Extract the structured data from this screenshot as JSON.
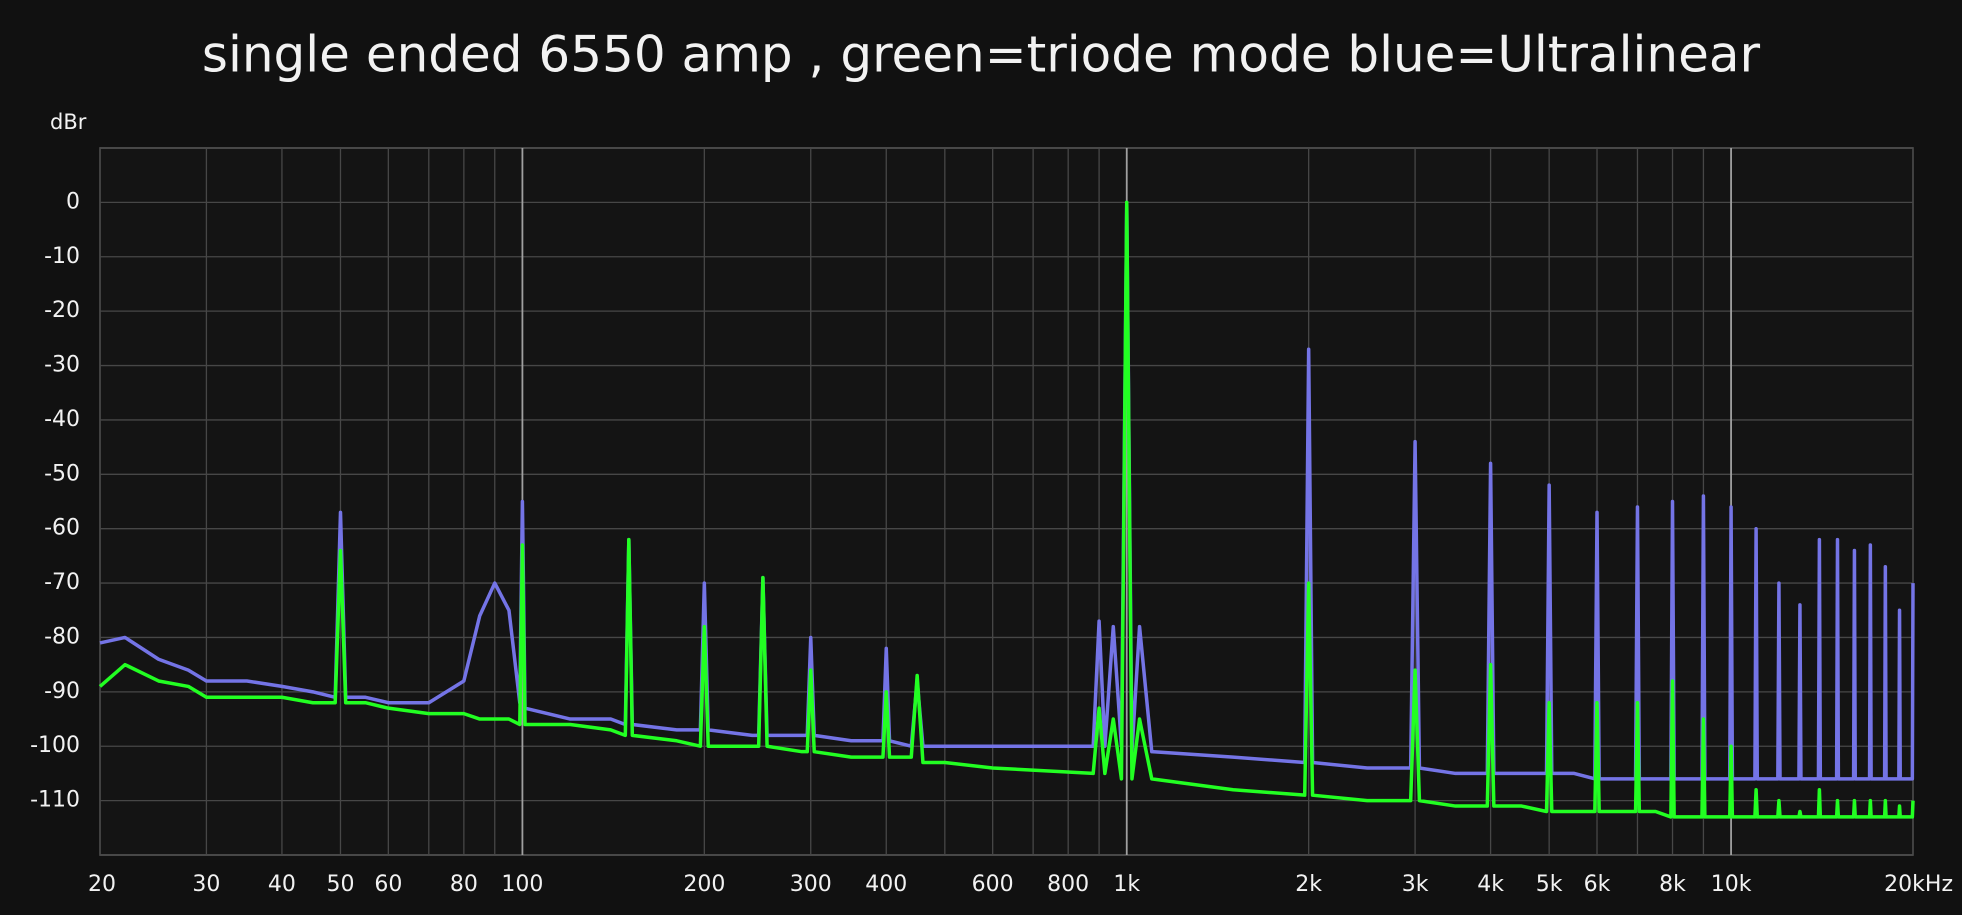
{
  "chart_data": {
    "type": "line",
    "title": "single ended 6550 amp , green=triode mode blue=Ultralinear",
    "y_label": "dBr",
    "x_scale": "log",
    "grid": true,
    "xlim": [
      20,
      20000
    ],
    "ylim": [
      -120,
      10
    ],
    "yticks": [
      0,
      -10,
      -20,
      -30,
      -40,
      -50,
      -60,
      -70,
      -80,
      -90,
      -100,
      -110
    ],
    "xticks": [
      20,
      30,
      40,
      50,
      60,
      80,
      100,
      200,
      300,
      400,
      600,
      800,
      {
        "value": 1000,
        "label": "1k"
      },
      {
        "value": 2000,
        "label": "2k"
      },
      {
        "value": 3000,
        "label": "3k"
      },
      {
        "value": 4000,
        "label": "4k"
      },
      {
        "value": 5000,
        "label": "5k"
      },
      {
        "value": 6000,
        "label": "6k"
      },
      {
        "value": 8000,
        "label": "8k"
      },
      {
        "value": 10000,
        "label": "10k"
      },
      {
        "value": 20000,
        "label": "20kHz"
      }
    ],
    "x_minor_ticks": [
      70,
      90,
      500,
      700,
      900,
      7000,
      9000
    ],
    "x": [
      20,
      22,
      25,
      28,
      30,
      35,
      40,
      45,
      49,
      50,
      51,
      55,
      60,
      70,
      80,
      85,
      90,
      95,
      99,
      100,
      101,
      110,
      120,
      140,
      148,
      150,
      152,
      180,
      197,
      200,
      203,
      240,
      246,
      250,
      254,
      290,
      296,
      300,
      304,
      350,
      395,
      400,
      405,
      440,
      450,
      460,
      500,
      600,
      880,
      900,
      920,
      950,
      980,
      1000,
      1020,
      1050,
      1100,
      1500,
      1970,
      2000,
      2030,
      2500,
      2950,
      3000,
      3050,
      3500,
      3950,
      4000,
      4050,
      4500,
      4950,
      5000,
      5050,
      5500,
      5950,
      6000,
      6050,
      6500,
      6950,
      7000,
      7050,
      7500,
      7950,
      8000,
      8050,
      8500,
      8950,
      9000,
      9050,
      9500,
      9950,
      10000,
      10050,
      10950,
      11000,
      11050,
      11950,
      12000,
      12050,
      12950,
      13000,
      13050,
      13950,
      14000,
      14050,
      14950,
      15000,
      15050,
      15950,
      16000,
      16050,
      16950,
      17000,
      17050,
      17950,
      18000,
      18050,
      18950,
      19000,
      19050,
      19950,
      20000
    ],
    "series": [
      {
        "name": "blue=Ultralinear",
        "color": "#7474e6",
        "values": [
          -81,
          -80,
          -84,
          -86,
          -88,
          -88,
          -89,
          -90,
          -91,
          -57,
          -91,
          -91,
          -92,
          -92,
          -88,
          -76,
          -70,
          -75,
          -92,
          -55,
          -93,
          -94,
          -95,
          -95,
          -96,
          -62,
          -96,
          -97,
          -97,
          -70,
          -97,
          -98,
          -98,
          -69,
          -98,
          -98,
          -98,
          -80,
          -98,
          -99,
          -99,
          -82,
          -99,
          -100,
          -88,
          -100,
          -100,
          -100,
          -100,
          -77,
          -100,
          -78,
          -100,
          0,
          -101,
          -78,
          -101,
          -102,
          -103,
          -27,
          -103,
          -104,
          -104,
          -44,
          -104,
          -105,
          -105,
          -48,
          -105,
          -105,
          -105,
          -52,
          -105,
          -105,
          -106,
          -57,
          -106,
          -106,
          -106,
          -56,
          -106,
          -106,
          -106,
          -55,
          -106,
          -106,
          -106,
          -54,
          -106,
          -106,
          -106,
          -56,
          -106,
          -106,
          -60,
          -106,
          -106,
          -70,
          -106,
          -106,
          -74,
          -106,
          -106,
          -62,
          -106,
          -106,
          -62,
          -106,
          -106,
          -64,
          -106,
          -106,
          -63,
          -106,
          -106,
          -67,
          -106,
          -106,
          -75,
          -106,
          -106,
          -70
        ]
      },
      {
        "name": "green=triode mode",
        "color": "#22ff22",
        "values": [
          -89,
          -85,
          -88,
          -89,
          -91,
          -91,
          -91,
          -92,
          -92,
          -64,
          -92,
          -92,
          -93,
          -94,
          -94,
          -95,
          -95,
          -95,
          -96,
          -63,
          -96,
          -96,
          -96,
          -97,
          -98,
          -62,
          -98,
          -99,
          -100,
          -78,
          -100,
          -100,
          -100,
          -69,
          -100,
          -101,
          -101,
          -86,
          -101,
          -102,
          -102,
          -90,
          -102,
          -102,
          -87,
          -103,
          -103,
          -104,
          -105,
          -93,
          -105,
          -95,
          -106,
          0,
          -106,
          -95,
          -106,
          -108,
          -109,
          -70,
          -109,
          -110,
          -110,
          -86,
          -110,
          -111,
          -111,
          -85,
          -111,
          -111,
          -112,
          -92,
          -112,
          -112,
          -112,
          -92,
          -112,
          -112,
          -112,
          -92,
          -112,
          -112,
          -113,
          -88,
          -113,
          -113,
          -113,
          -95,
          -113,
          -113,
          -113,
          -100,
          -113,
          -113,
          -108,
          -113,
          -113,
          -110,
          -113,
          -113,
          -112,
          -113,
          -113,
          -108,
          -113,
          -113,
          -110,
          -113,
          -113,
          -110,
          -113,
          -113,
          -110,
          -113,
          -113,
          -110,
          -113,
          -113,
          -111,
          -113,
          -113,
          -110
        ]
      }
    ]
  }
}
